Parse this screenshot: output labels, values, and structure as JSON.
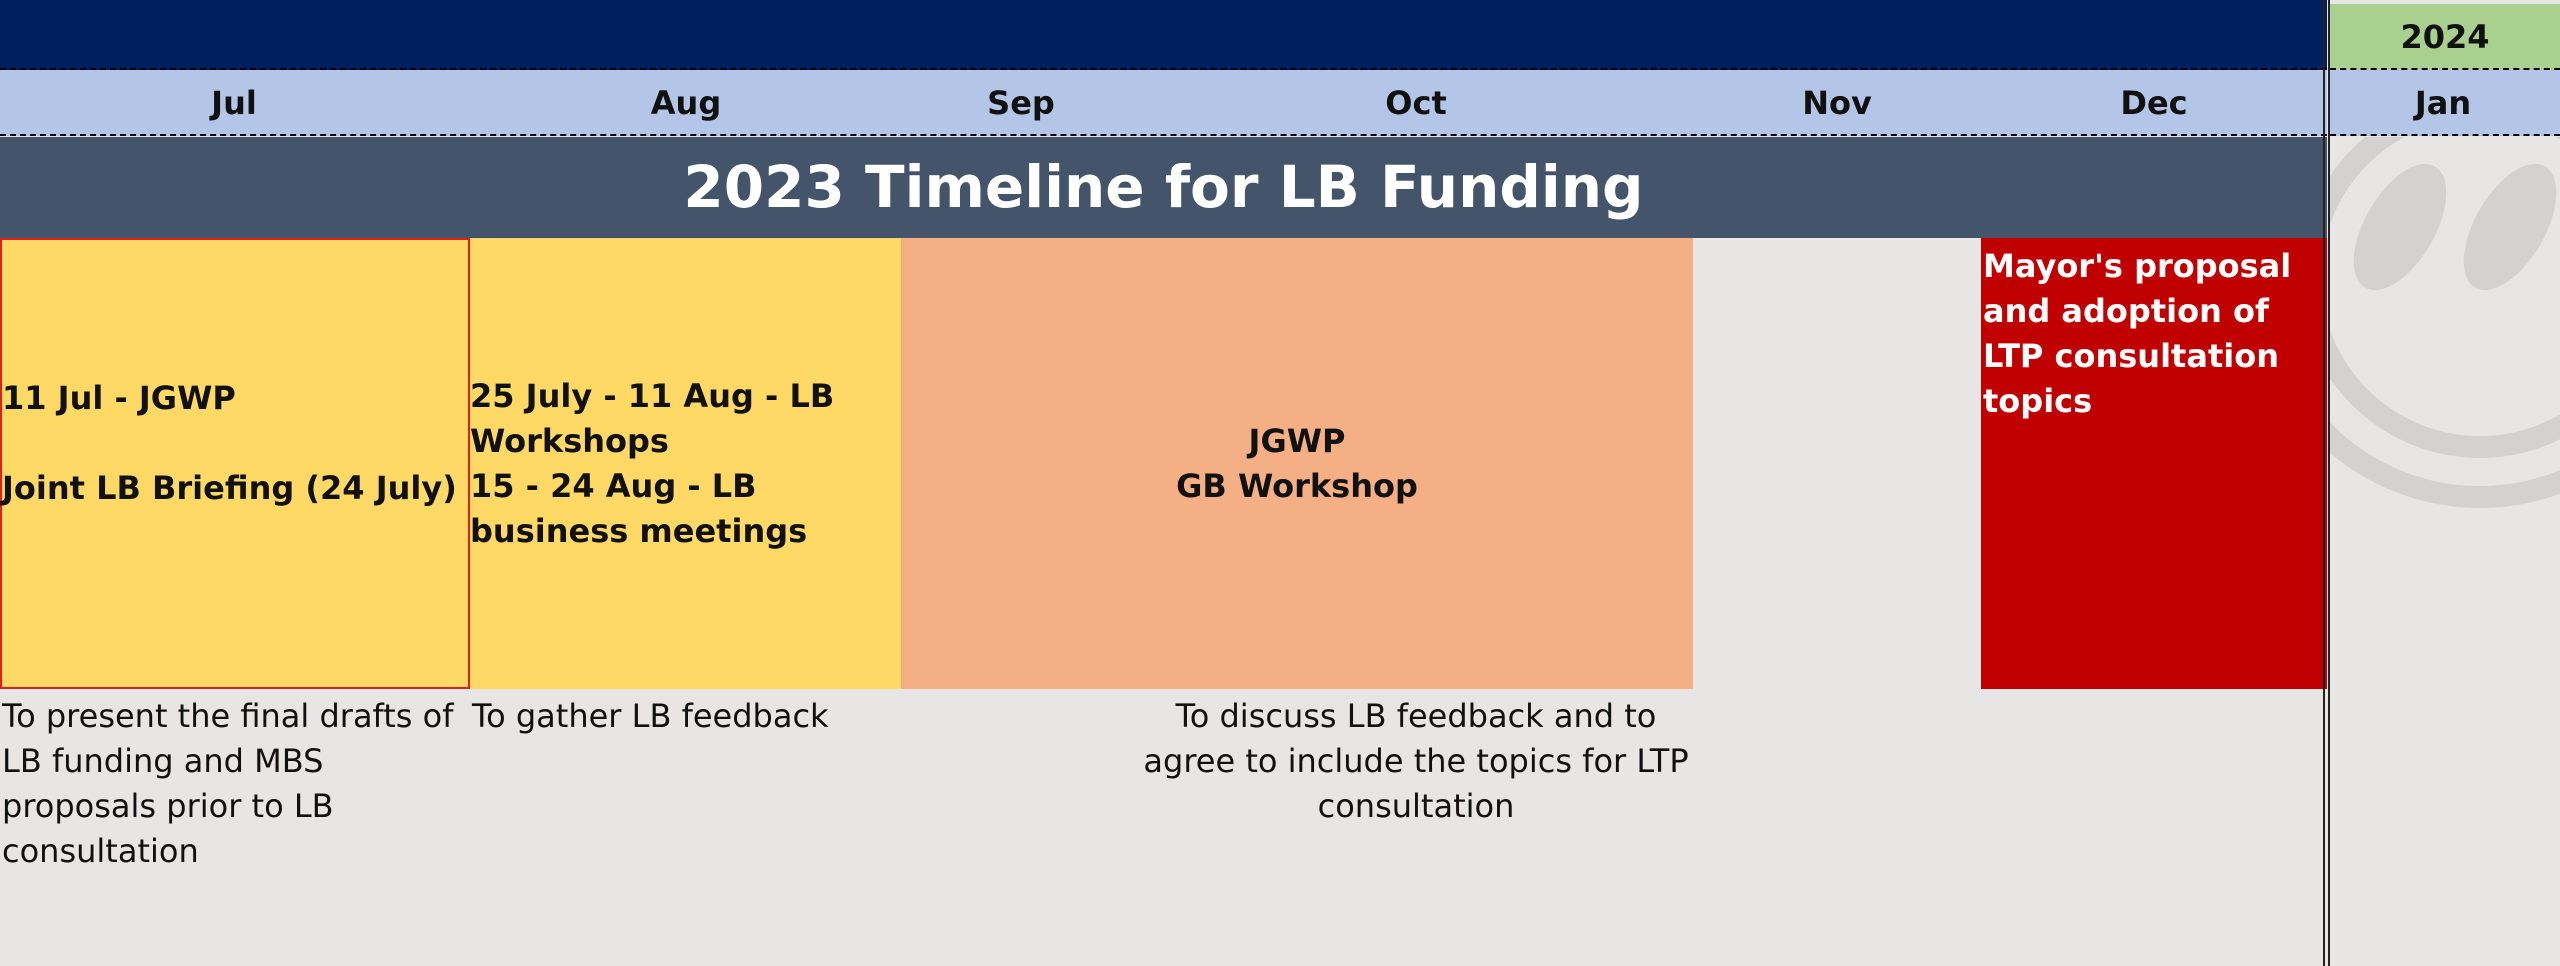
{
  "header": {
    "year": "2024",
    "months": [
      "Jul",
      "Aug",
      "Sep",
      "Oct",
      "Nov",
      "Dec",
      "Jan"
    ],
    "title": "2023 Timeline for LB Funding"
  },
  "boxes": [
    {
      "lines": [
        "11 Jul - JGWP",
        "Joint LB Briefing (24 July)"
      ]
    },
    {
      "lines": [
        "25 July - 11 Aug - LB Workshops",
        "15 - 24 Aug - LB business meetings"
      ]
    },
    {
      "lines": [
        "JGWP",
        "GB Workshop"
      ]
    },
    {
      "lines": [
        "Mayor's proposal and adoption of LTP consultation topics"
      ]
    }
  ],
  "notes": [
    "To present the final drafts of LB funding and MBS proposals prior to LB consultation",
    "To gather LB feedback",
    "To discuss LB feedback and to agree to include the topics for LTP consultation"
  ]
}
